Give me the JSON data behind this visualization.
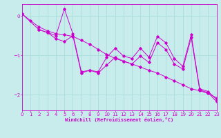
{
  "xlabel": "Windchill (Refroidissement éolien,°C)",
  "background_color": "#c8ecec",
  "line_color": "#cc00cc",
  "grid_color": "#aadddd",
  "xlim": [
    0,
    23
  ],
  "ylim": [
    -2.4,
    0.3
  ],
  "yticks": [
    0,
    -1,
    -2
  ],
  "xticks": [
    0,
    1,
    2,
    3,
    4,
    5,
    6,
    7,
    8,
    9,
    10,
    11,
    12,
    13,
    14,
    15,
    16,
    17,
    18,
    19,
    20,
    21,
    22,
    23
  ],
  "series1": {
    "x": [
      0,
      1,
      2,
      3,
      4,
      5,
      6,
      7,
      8,
      9,
      10,
      11,
      12,
      13,
      14,
      15,
      16,
      17,
      18,
      19,
      20,
      21,
      22,
      23
    ],
    "y": [
      0.05,
      -0.12,
      -0.28,
      -0.38,
      -0.45,
      -0.48,
      -0.52,
      -0.62,
      -0.72,
      -0.85,
      -0.98,
      -1.08,
      -1.15,
      -1.22,
      -1.3,
      -1.38,
      -1.45,
      -1.55,
      -1.65,
      -1.75,
      -1.85,
      -1.9,
      -1.97,
      -2.08
    ]
  },
  "series2": {
    "x": [
      0,
      2,
      3,
      4,
      5,
      6,
      7,
      8,
      9,
      10,
      11,
      12,
      13,
      14,
      15,
      16,
      17,
      18,
      19,
      20,
      21,
      22,
      23
    ],
    "y": [
      0.05,
      -0.35,
      -0.42,
      -0.5,
      0.18,
      -0.45,
      -1.42,
      -1.38,
      -1.42,
      -1.05,
      -0.82,
      -1.02,
      -1.08,
      -0.82,
      -1.05,
      -0.52,
      -0.68,
      -1.08,
      -1.28,
      -0.48,
      -1.85,
      -1.92,
      -2.12
    ]
  },
  "series3": {
    "x": [
      2,
      3,
      4,
      5,
      6,
      7,
      8,
      9,
      10,
      11,
      12,
      13,
      14,
      15,
      16,
      17,
      18,
      19,
      20,
      21,
      22,
      23
    ],
    "y": [
      -0.35,
      -0.42,
      -0.58,
      -0.65,
      -0.5,
      -1.45,
      -1.38,
      -1.45,
      -1.25,
      -1.05,
      -1.15,
      -1.22,
      -1.02,
      -1.18,
      -0.68,
      -0.85,
      -1.22,
      -1.35,
      -0.55,
      -1.88,
      -1.95,
      -2.18
    ]
  }
}
